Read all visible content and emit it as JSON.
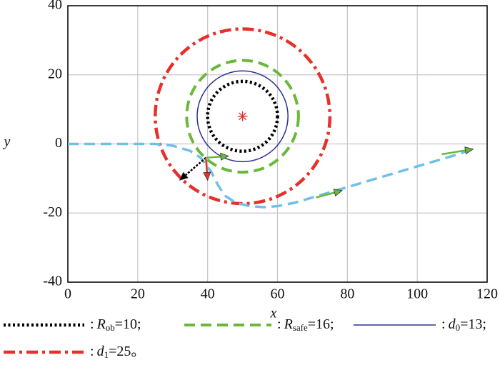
{
  "chart_data": {
    "type": "line",
    "xlabel": "x",
    "ylabel": "y",
    "xlim": [
      0,
      120
    ],
    "ylim": [
      -40,
      40
    ],
    "xticks": [
      0,
      20,
      40,
      60,
      80,
      100,
      120
    ],
    "yticks": [
      -40,
      -20,
      0,
      20,
      40
    ],
    "grid": true,
    "center": {
      "x": 50,
      "y": 8,
      "color": "#e8302a"
    },
    "circles": [
      {
        "prefix": ":",
        "name": "R",
        "sub": "ob",
        "suffix": "=10;",
        "r": 10,
        "color": "#000000",
        "style": "dotted"
      },
      {
        "prefix": ":",
        "name": "R",
        "sub": "safe",
        "suffix": "=16;",
        "r": 16,
        "color": "#6ab83a",
        "style": "dashed"
      },
      {
        "prefix": ":",
        "name": "d",
        "sub": "0",
        "suffix": "=13;",
        "r": 13,
        "color": "#2e3192",
        "style": "solid"
      },
      {
        "prefix": ":",
        "name": "d",
        "sub": "1",
        "suffix": "=25。",
        "r": 25,
        "color": "#e8302a",
        "style": "dashdot"
      }
    ],
    "path": {
      "color": "#6ec0ea",
      "x": [
        0,
        10,
        20,
        25,
        30,
        35,
        38,
        41,
        43,
        45,
        48,
        52,
        56,
        60,
        65,
        70,
        80,
        90,
        100,
        110,
        116
      ],
      "y": [
        0,
        0,
        0,
        0,
        -0.5,
        -2,
        -4,
        -8,
        -12,
        -15,
        -17,
        -18,
        -18.3,
        -18,
        -17,
        -15.5,
        -12.5,
        -9.5,
        -6.5,
        -3.5,
        -1.5
      ]
    },
    "arrows": [
      {
        "x": [
          39.5,
          32
        ],
        "y": [
          -4,
          -10.5
        ],
        "color": "#000000"
      },
      {
        "x": [
          39.5,
          40
        ],
        "y": [
          -4,
          -10.5
        ],
        "color": "#e8302a"
      },
      {
        "x": [
          39.5,
          46
        ],
        "y": [
          -4,
          -3.5
        ],
        "color": "#6ab83a"
      },
      {
        "x": [
          71,
          78.5
        ],
        "y": [
          -15.5,
          -13.5
        ],
        "color": "#6ab83a"
      },
      {
        "x": [
          107,
          116
        ],
        "y": [
          -3,
          -1.5
        ],
        "color": "#6ab83a"
      }
    ]
  }
}
